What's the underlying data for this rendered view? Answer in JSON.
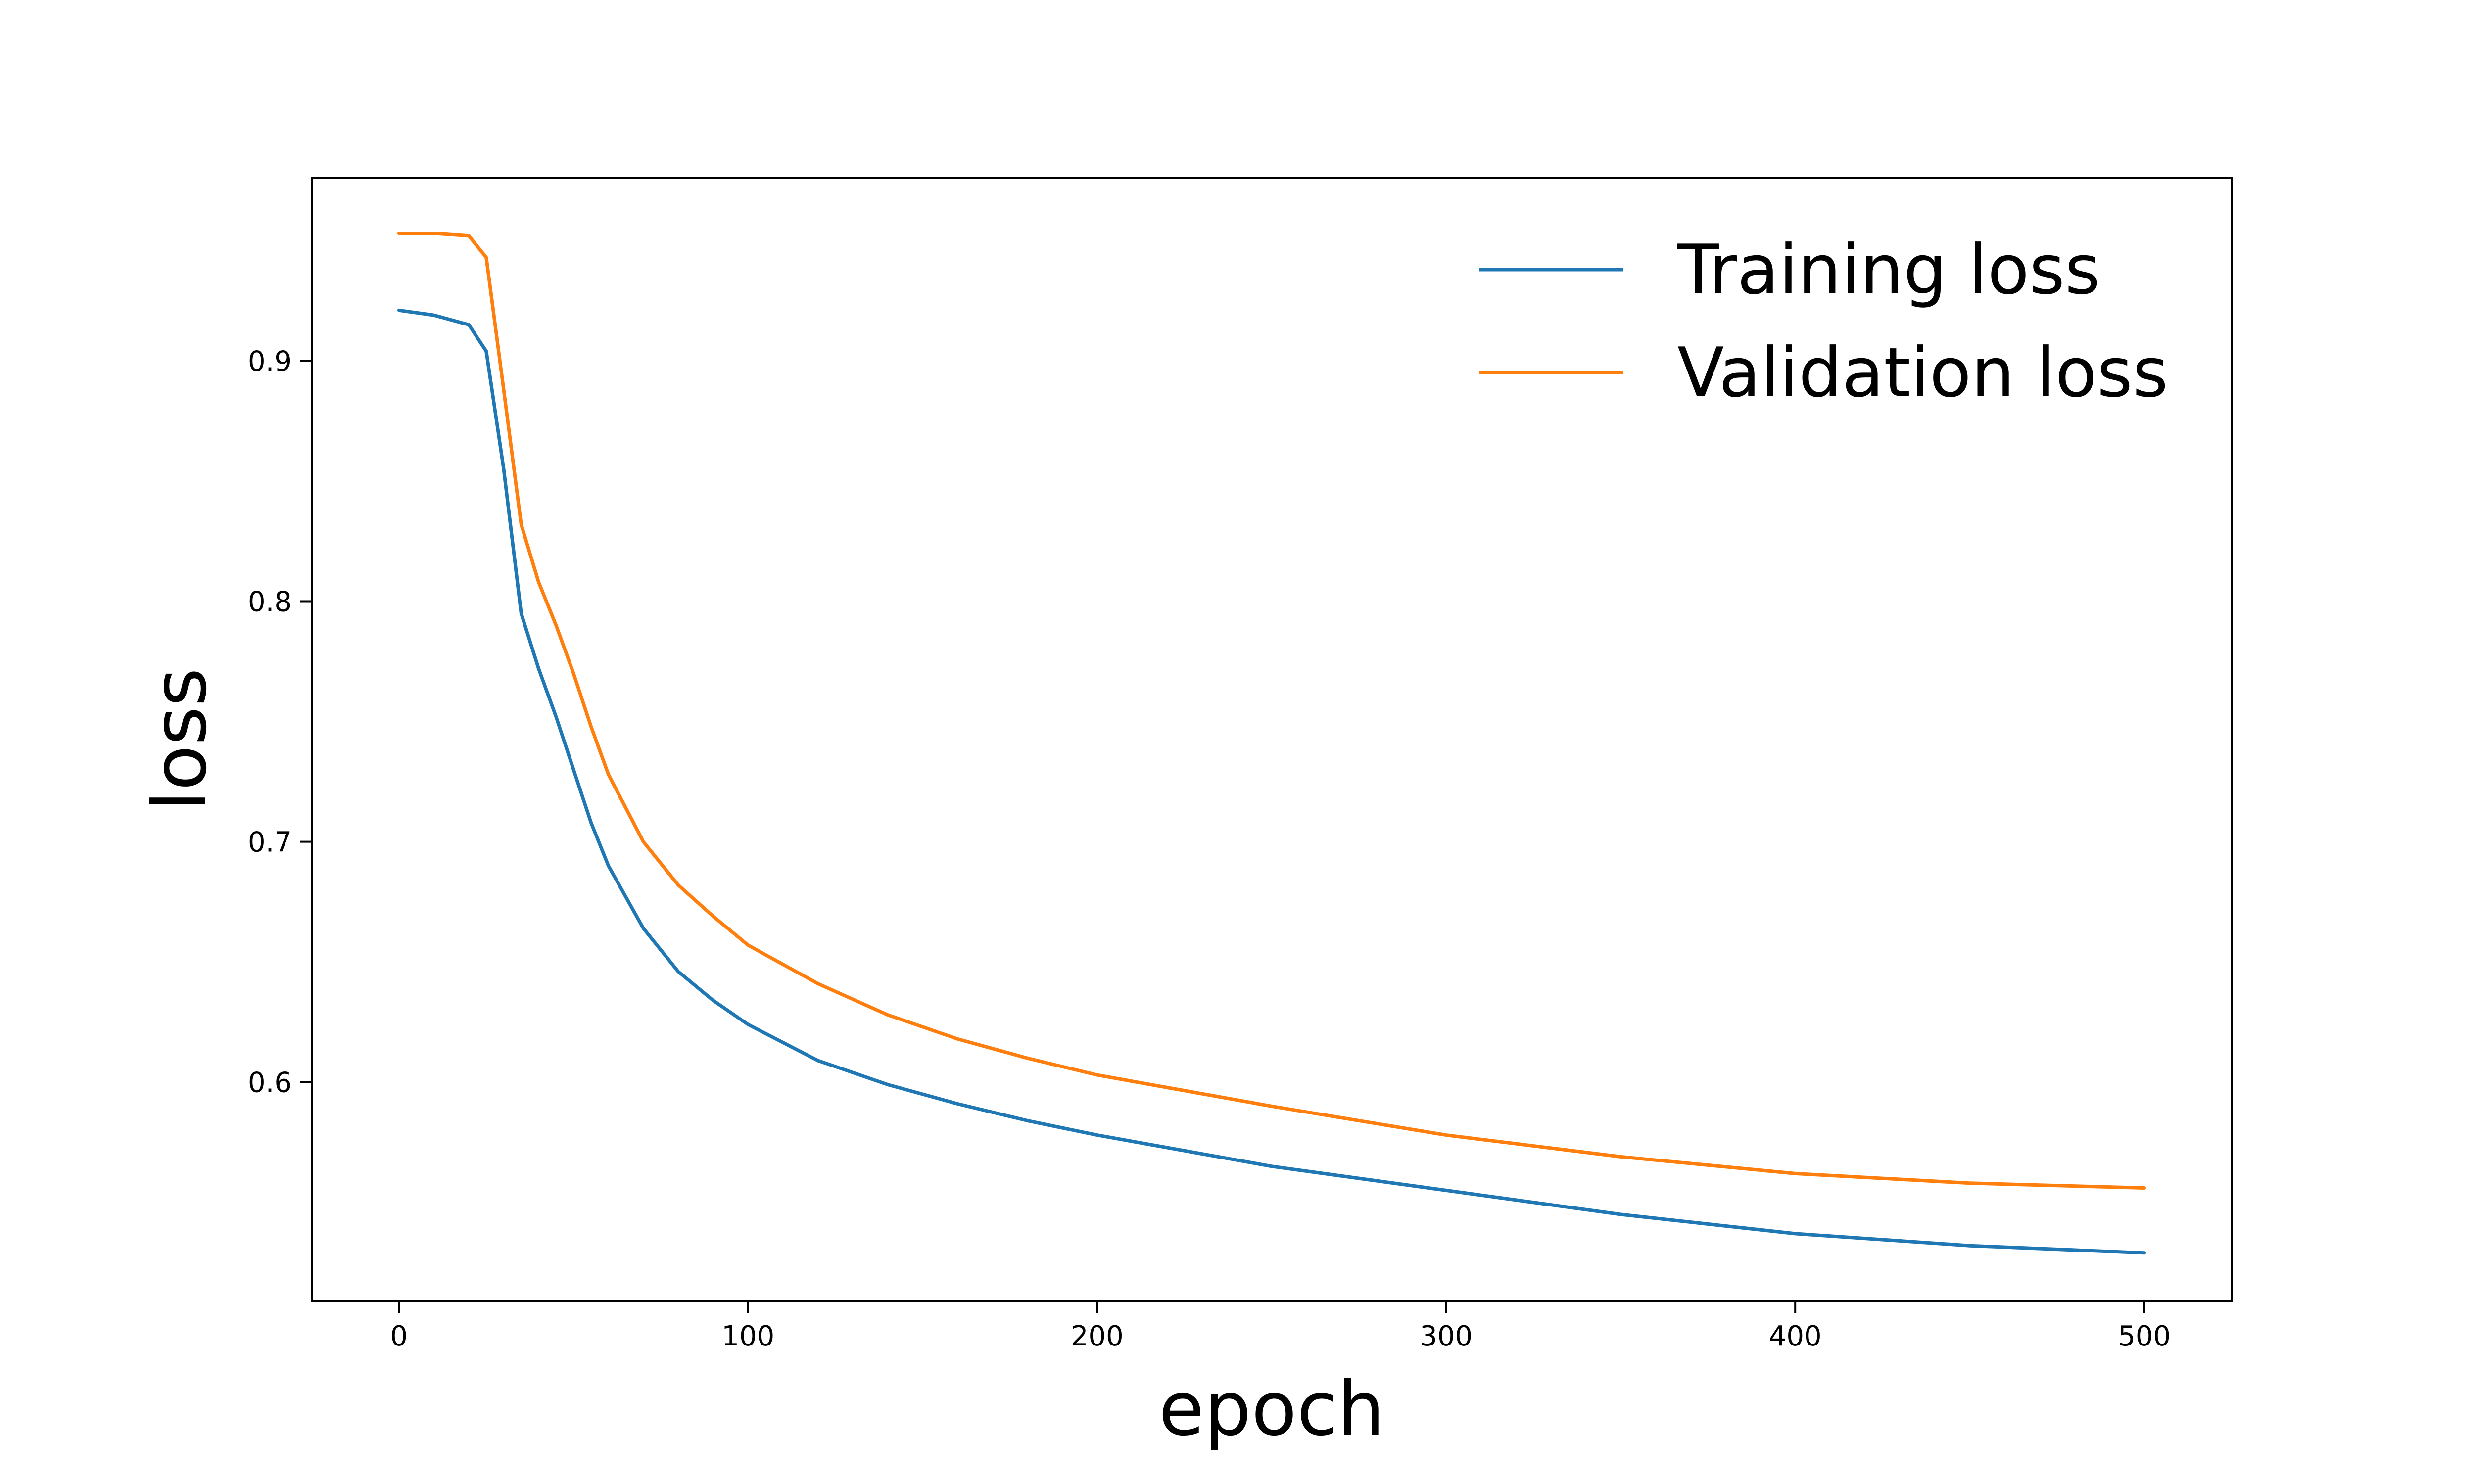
{
  "chart_data": {
    "type": "line",
    "title": "",
    "xlabel": "epoch",
    "ylabel": "loss",
    "xlim": [
      -25,
      525
    ],
    "ylim": [
      0.509,
      0.976
    ],
    "x_ticks": [
      0,
      100,
      200,
      300,
      400,
      500
    ],
    "y_ticks": [
      0.6,
      0.7,
      0.8,
      0.9
    ],
    "x_tick_labels": [
      "0",
      "100",
      "200",
      "300",
      "400",
      "500"
    ],
    "y_tick_labels": [
      "0.6",
      "0.7",
      "0.8",
      "0.9"
    ],
    "grid": false,
    "legend_position": "top-right",
    "x": [
      0,
      10,
      20,
      25,
      30,
      35,
      40,
      45,
      50,
      55,
      60,
      70,
      80,
      90,
      100,
      120,
      140,
      160,
      180,
      200,
      250,
      300,
      350,
      400,
      450,
      500
    ],
    "series": [
      {
        "name": "Training loss",
        "color": "#1f77b4",
        "values": [
          0.921,
          0.919,
          0.915,
          0.904,
          0.855,
          0.795,
          0.772,
          0.752,
          0.73,
          0.708,
          0.69,
          0.664,
          0.646,
          0.634,
          0.624,
          0.609,
          0.599,
          0.591,
          0.584,
          0.578,
          0.565,
          0.555,
          0.545,
          0.537,
          0.532,
          0.529
        ]
      },
      {
        "name": "Validation loss",
        "color": "#ff7f0e",
        "values": [
          0.953,
          0.953,
          0.952,
          0.943,
          0.888,
          0.832,
          0.808,
          0.79,
          0.77,
          0.748,
          0.728,
          0.7,
          0.682,
          0.669,
          0.657,
          0.641,
          0.628,
          0.618,
          0.61,
          0.603,
          0.59,
          0.578,
          0.569,
          0.562,
          0.558,
          0.556
        ]
      }
    ]
  }
}
